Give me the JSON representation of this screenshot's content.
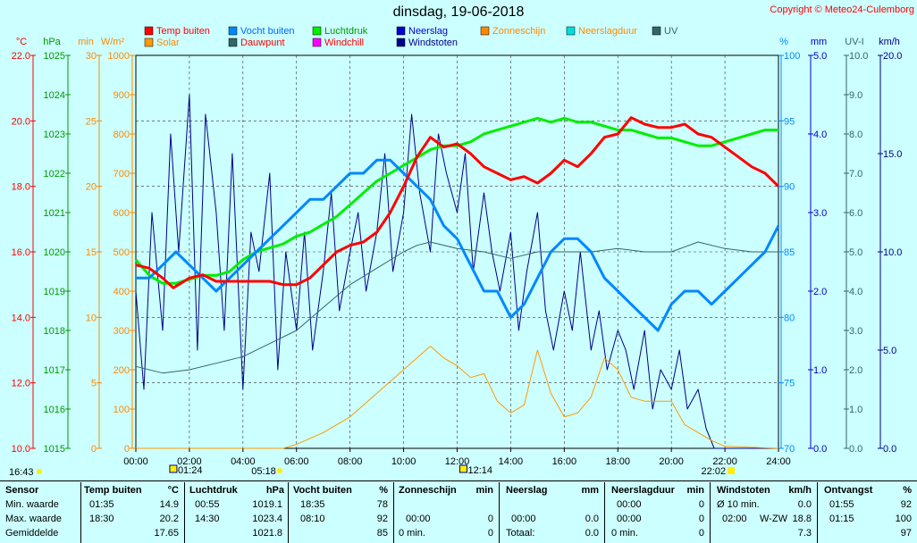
{
  "header": {
    "title": "dinsdag, 19-06-2018",
    "copyright": "Copyright © Meteo24-Culemborg"
  },
  "axes": {
    "left_units": [
      "°C",
      "hPa",
      "min",
      "W/m²"
    ],
    "right_units": [
      "%",
      "mm",
      "UV-I",
      "km/h"
    ],
    "temp_ticks": [
      "22.0",
      "20.0",
      "18.0",
      "16.0",
      "14.0",
      "12.0",
      "10.0"
    ],
    "pressure_ticks": [
      "1025",
      "1024",
      "1023",
      "1022",
      "1021",
      "1020",
      "1019",
      "1018",
      "1017",
      "1016",
      "1015"
    ],
    "sunshine_ticks": [
      "30",
      "25",
      "20",
      "15",
      "10",
      "5",
      "0"
    ],
    "solar_ticks": [
      "1000",
      "900",
      "800",
      "700",
      "600",
      "500",
      "400",
      "300",
      "200",
      "100",
      "0"
    ],
    "humidity_ticks": [
      "100",
      "95",
      "90",
      "85",
      "80",
      "75",
      "70"
    ],
    "rain_ticks": [
      "5.0",
      "4.0",
      "3.0",
      "2.0",
      "1.0",
      "0.0"
    ],
    "uv_ticks": [
      "10.0",
      "9.0",
      "8.0",
      "7.0",
      "6.0",
      "5.0",
      "4.0",
      "3.0",
      "2.0",
      "1.0",
      "0.0"
    ],
    "wind_ticks": [
      "20.0",
      "15.0",
      "10.0",
      "5.0",
      "0.0"
    ],
    "x_ticks": [
      "00:00",
      "02:00",
      "04:00",
      "06:00",
      "08:00",
      "10:00",
      "12:00",
      "14:00",
      "16:00",
      "18:00",
      "20:00",
      "22:00",
      "24:00"
    ]
  },
  "sun_markers": {
    "moonset": "01:24",
    "sunrise": "05:18",
    "solar_noon": "12:14",
    "sunset": "22:02",
    "moonrise": "16:43"
  },
  "legend": [
    {
      "label": "Temp buiten",
      "color": "#ff0000",
      "text_color": "#ff0000"
    },
    {
      "label": "Solar",
      "color": "#ff9900",
      "text_color": "#ff8800"
    },
    {
      "label": "Vocht buiten",
      "color": "#0088ff",
      "text_color": "#0066ff"
    },
    {
      "label": "Dauwpunt",
      "color": "#336666",
      "text_color": "#ff0000"
    },
    {
      "label": "Luchtdruk",
      "color": "#00ee00",
      "text_color": "#009900"
    },
    {
      "label": "Windchill",
      "color": "#ff00ff",
      "text_color": "#ff0000"
    },
    {
      "label": "Neerslag",
      "color": "#0000cc",
      "text_color": "#0000cc"
    },
    {
      "label": "Windstoten",
      "color": "#000088",
      "text_color": "#000088"
    },
    {
      "label": "Zonneschijn",
      "color": "#ff8800",
      "text_color": "#ff8800"
    },
    {
      "label": "Neerslagduur",
      "color": "#00dddd",
      "text_color": "#ff8800"
    },
    {
      "label": "UV",
      "color": "#336666",
      "text_color": "#336666"
    }
  ],
  "colors": {
    "temp": "#ff0000",
    "humidity": "#0088ff",
    "pressure": "#00ee00",
    "dewpoint": "#336666",
    "solar": "#ff9900",
    "gust": "#000088",
    "axis_temp": "#ff0000",
    "axis_pressure": "#009900",
    "axis_sunshine": "#ff8800",
    "axis_solar": "#ff8800",
    "axis_humidity": "#0088ff",
    "axis_rain": "#0000cc",
    "axis_uv": "#336666",
    "axis_wind": "#000088"
  },
  "chart_data": {
    "type": "line",
    "title": "dinsdag, 19-06-2018",
    "x_range_hours": [
      0,
      24
    ],
    "grid": true,
    "series": [
      {
        "name": "Temp buiten",
        "unit": "°C",
        "ylim": [
          10,
          22
        ],
        "x": [
          0,
          0.5,
          1,
          1.4,
          1.6,
          2,
          2.5,
          3,
          3.5,
          4,
          4.5,
          5,
          5.5,
          6,
          6.5,
          7,
          7.5,
          8,
          8.5,
          9,
          9.5,
          10,
          10.5,
          11,
          11.5,
          12,
          12.5,
          13,
          13.5,
          14,
          14.5,
          15,
          15.5,
          16,
          16.5,
          17,
          17.5,
          18,
          18.5,
          19,
          19.5,
          20,
          20.5,
          21,
          21.5,
          22,
          22.5,
          23,
          23.5,
          24
        ],
        "y": [
          15.6,
          15.5,
          15.2,
          14.9,
          15.0,
          15.2,
          15.3,
          15.1,
          15.1,
          15.1,
          15.1,
          15.1,
          15.0,
          15.0,
          15.2,
          15.6,
          16.0,
          16.2,
          16.3,
          16.6,
          17.2,
          18.0,
          18.9,
          19.5,
          19.2,
          19.3,
          19.0,
          18.6,
          18.4,
          18.2,
          18.3,
          18.1,
          18.4,
          18.8,
          18.6,
          19.0,
          19.5,
          19.6,
          20.1,
          19.9,
          19.8,
          19.8,
          19.9,
          19.6,
          19.5,
          19.2,
          18.9,
          18.6,
          18.4,
          18.0
        ]
      },
      {
        "name": "Vocht buiten",
        "unit": "%",
        "ylim": [
          70,
          100
        ],
        "x": [
          0,
          0.5,
          1,
          1.5,
          2,
          2.5,
          3,
          3.5,
          4,
          4.5,
          5,
          5.5,
          6,
          6.5,
          7,
          7.5,
          8,
          8.5,
          9,
          9.5,
          10,
          10.5,
          11,
          11.5,
          12,
          12.5,
          13,
          13.5,
          14,
          14.5,
          15,
          15.5,
          16,
          16.5,
          17,
          17.5,
          18,
          18.5,
          19,
          19.5,
          20,
          20.5,
          21,
          21.5,
          22,
          22.5,
          23,
          23.5,
          24
        ],
        "y": [
          83,
          83,
          84,
          85,
          84,
          83,
          82,
          83,
          84,
          85,
          86,
          87,
          88,
          89,
          89,
          90,
          91,
          91,
          92,
          92,
          91,
          90,
          89,
          87,
          86,
          84,
          82,
          82,
          80,
          81,
          83,
          85,
          86,
          86,
          85,
          83,
          82,
          81,
          80,
          79,
          81,
          82,
          82,
          81,
          82,
          83,
          84,
          85,
          87
        ]
      },
      {
        "name": "Luchtdruk",
        "unit": "hPa",
        "ylim": [
          1015,
          1025
        ],
        "x": [
          0,
          0.5,
          1,
          1.5,
          2,
          2.5,
          3,
          3.5,
          4,
          4.5,
          5,
          5.5,
          6,
          6.5,
          7,
          7.5,
          8,
          8.5,
          9,
          9.5,
          10,
          10.5,
          11,
          11.5,
          12,
          12.5,
          13,
          13.5,
          14,
          14.5,
          15,
          15.5,
          16,
          16.5,
          17,
          17.5,
          18,
          18.5,
          19,
          19.5,
          20,
          20.5,
          21,
          21.5,
          22,
          22.5,
          23,
          23.5,
          24
        ],
        "y": [
          1019.8,
          1019.4,
          1019.2,
          1019.2,
          1019.3,
          1019.4,
          1019.4,
          1019.5,
          1019.8,
          1020.0,
          1020.1,
          1020.2,
          1020.4,
          1020.5,
          1020.7,
          1020.9,
          1021.2,
          1021.5,
          1021.8,
          1022.0,
          1022.2,
          1022.4,
          1022.6,
          1022.7,
          1022.7,
          1022.8,
          1023.0,
          1023.1,
          1023.2,
          1023.3,
          1023.4,
          1023.3,
          1023.4,
          1023.3,
          1023.3,
          1023.2,
          1023.1,
          1023.1,
          1023.0,
          1022.9,
          1022.9,
          1022.8,
          1022.7,
          1022.7,
          1022.8,
          1022.9,
          1023.0,
          1023.1,
          1023.1
        ]
      },
      {
        "name": "Dauwpunt",
        "unit": "°C",
        "ylim": [
          10,
          22
        ],
        "x": [
          0,
          1,
          2,
          3,
          4,
          5,
          6,
          7,
          8,
          9,
          10,
          10.5,
          11,
          12,
          13,
          14,
          15,
          16,
          17,
          18,
          19,
          20,
          21,
          22,
          23,
          24
        ],
        "y": [
          12.5,
          12.3,
          12.4,
          12.6,
          12.8,
          13.2,
          13.6,
          14.3,
          15.0,
          15.5,
          16.0,
          16.2,
          16.3,
          16.1,
          16.0,
          15.8,
          16.0,
          16.0,
          16.0,
          16.1,
          16.0,
          16.0,
          16.3,
          16.1,
          16.0,
          16.0
        ]
      },
      {
        "name": "Solar",
        "unit": "W/m²",
        "ylim": [
          0,
          1000
        ],
        "x": [
          0,
          5.5,
          6,
          7,
          8,
          8.5,
          9,
          9.5,
          10,
          10.5,
          11,
          11.5,
          12,
          12.5,
          13,
          13.5,
          14,
          14.5,
          15,
          15.5,
          16,
          16.5,
          17,
          17.5,
          18,
          18.5,
          19,
          20,
          20.5,
          21,
          21.5,
          22,
          24
        ],
        "y": [
          0,
          0,
          10,
          40,
          80,
          110,
          140,
          170,
          200,
          230,
          260,
          230,
          210,
          180,
          190,
          120,
          90,
          110,
          250,
          140,
          80,
          90,
          130,
          230,
          200,
          130,
          120,
          120,
          60,
          40,
          20,
          5,
          0
        ]
      },
      {
        "name": "Windstoten",
        "unit": "km/h",
        "ylim": [
          0,
          20
        ],
        "x": [
          0,
          0.3,
          0.6,
          1,
          1.3,
          1.6,
          2,
          2.3,
          2.6,
          3,
          3.3,
          3.6,
          4,
          4.3,
          4.6,
          5,
          5.3,
          5.6,
          6,
          6.3,
          6.6,
          7,
          7.3,
          7.6,
          8,
          8.3,
          8.6,
          9,
          9.3,
          9.6,
          10,
          10.3,
          10.6,
          11,
          11.3,
          11.6,
          12,
          12.3,
          12.6,
          13,
          13.3,
          13.6,
          14,
          14.3,
          14.6,
          15,
          15.3,
          15.6,
          16,
          16.3,
          16.6,
          17,
          17.3,
          17.6,
          18,
          18.3,
          18.6,
          19,
          19.3,
          19.6,
          20,
          20.3,
          20.6,
          21,
          21.3,
          21.6,
          22,
          24
        ],
        "y": [
          8,
          3,
          12,
          6,
          16,
          10,
          18,
          5,
          17,
          12,
          6,
          15,
          3,
          11,
          9,
          14,
          4,
          10,
          6,
          11,
          5,
          9,
          13,
          7,
          10,
          12,
          8,
          11,
          15,
          9,
          12,
          17,
          13,
          10,
          16,
          14,
          12,
          15,
          9,
          13,
          10,
          8,
          11,
          6,
          9,
          12,
          7,
          5,
          8,
          6,
          10,
          5,
          7,
          4,
          6,
          5,
          3,
          6,
          2,
          4,
          3,
          5,
          2,
          3,
          1,
          0,
          0,
          0
        ]
      }
    ]
  },
  "stats": {
    "headers": {
      "sensor": "Sensor",
      "temp": "Temp buiten",
      "temp_unit": "°C",
      "pressure": "Luchtdruk",
      "pressure_unit": "hPa",
      "humidity": "Vocht buiten",
      "humidity_unit": "%",
      "sunshine": "Zonneschijn",
      "sunshine_unit": "min",
      "rain": "Neerslag",
      "rain_unit": "mm",
      "rainduration": "Neerslagduur",
      "rainduration_unit": "min",
      "gust": "Windstoten",
      "gust_unit": "km/h",
      "received": "Ontvangst",
      "received_unit": "%"
    },
    "row_labels": {
      "min": "Min. waarde",
      "max": "Max. waarde",
      "avg": "Gemiddelde"
    },
    "temp": {
      "min_time": "01:35",
      "min": "14.9",
      "max_time": "18:30",
      "max": "20.2",
      "avg": "17.65"
    },
    "pressure": {
      "min_time": "00:55",
      "min": "1019.1",
      "max_time": "14:30",
      "max": "1023.4",
      "avg": "1021.8"
    },
    "humidity": {
      "min_time": "18:35",
      "min": "78",
      "max_time": "08:10",
      "max": "92",
      "avg": "85"
    },
    "sunshine": {
      "max_time": "00:00",
      "max": "0",
      "avg_label": "0 min.",
      "avg": "0"
    },
    "rain": {
      "max_time": "00:00",
      "max": "0.0",
      "avg_label": "Totaal:",
      "avg": "0.0"
    },
    "rainduration": {
      "min_time": "00:00",
      "min": "0",
      "max_time": "00:00",
      "max": "0",
      "avg_label": "0 min.",
      "avg": "0"
    },
    "gust": {
      "min_label": "Ø 10 min.",
      "min": "0.0",
      "max_time": "02:00",
      "max_dir": "W-ZW",
      "max": "18.8",
      "avg": "7.3"
    },
    "received": {
      "min_time": "01:55",
      "min": "92",
      "max_time": "01:15",
      "max": "100",
      "avg": "97"
    }
  }
}
